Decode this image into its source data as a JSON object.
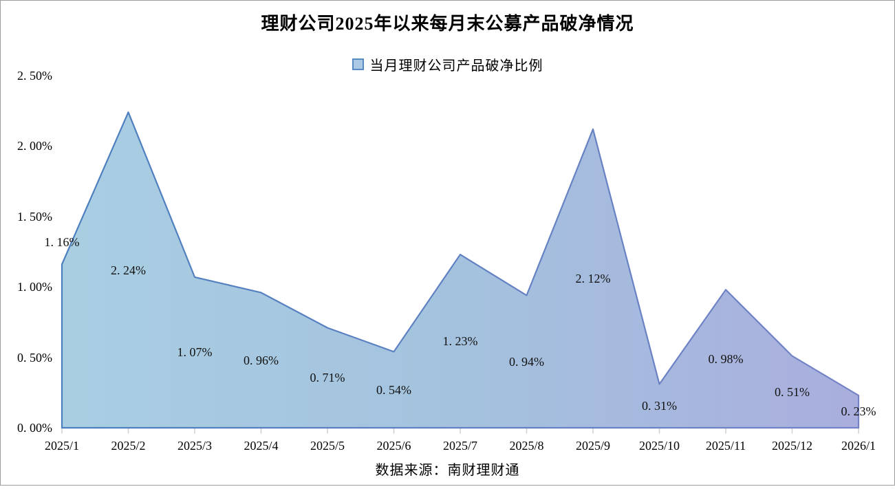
{
  "title": "理财公司2025年以来每月末公募产品破净情况",
  "legend": {
    "label": "当月理财公司产品破净比例",
    "marker_fill": "#abc9e4",
    "marker_border": "#5a8ac2"
  },
  "source_note": "数据来源：南财理财通",
  "chart_data": {
    "type": "area",
    "title": "理财公司2025年以来每月末公募产品破净情况",
    "series_name": "当月理财公司产品破净比例",
    "categories": [
      "2025/1",
      "2025/2",
      "2025/3",
      "2025/4",
      "2025/5",
      "2025/6",
      "2025/7",
      "2025/8",
      "2025/9",
      "2025/10",
      "2025/11",
      "2025/12",
      "2026/1"
    ],
    "values": [
      1.16,
      2.24,
      1.07,
      0.96,
      0.71,
      0.54,
      1.23,
      0.94,
      2.12,
      0.31,
      0.98,
      0.51,
      0.23
    ],
    "data_labels": [
      "1. 16%",
      "2. 24%",
      "1. 07%",
      "0. 96%",
      "0. 71%",
      "0. 54%",
      "1. 23%",
      "0. 94%",
      "2. 12%",
      "0. 31%",
      "0. 98%",
      "0. 51%",
      "0. 23%"
    ],
    "unit": "%",
    "ylim": [
      0,
      2.5
    ],
    "y_tick_labels": [
      "0. 00%",
      "0. 50%",
      "1. 00%",
      "1. 50%",
      "2. 00%",
      "2. 50%"
    ],
    "grid": false,
    "legend_position": "top",
    "area_fill_gradient": [
      "#a9cee2",
      "#a4c2de",
      "#a9aedd"
    ],
    "line_color_gradient": [
      "#4b7fbe",
      "#7583c6"
    ],
    "tick_color": "#cfcfcf"
  }
}
